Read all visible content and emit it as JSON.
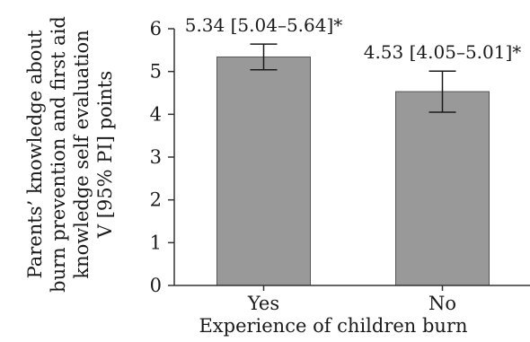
{
  "chart_data": {
    "type": "bar",
    "categories": [
      "Yes",
      "No"
    ],
    "values": [
      5.34,
      4.53
    ],
    "error_low": [
      5.04,
      4.05
    ],
    "error_high": [
      5.64,
      5.01
    ],
    "data_labels": [
      "5.34 [5.04–5.64]*",
      "4.53 [4.05–5.01]*"
    ],
    "xlabel": "Experience of children burn",
    "ylabel_lines": [
      "Parents’ knowledge about",
      "burn prevention and first aid",
      "knowledge self evaluation",
      "V [95% PI] points"
    ],
    "ylim": [
      0,
      6
    ],
    "yticks": [
      0,
      1,
      2,
      3,
      4,
      5,
      6
    ],
    "grid": false,
    "legend": "none",
    "colors": {
      "bar_fill": "#999999",
      "bar_stroke": "#555555",
      "axis": "#333333",
      "error_bar": "#1a1a1a"
    }
  }
}
